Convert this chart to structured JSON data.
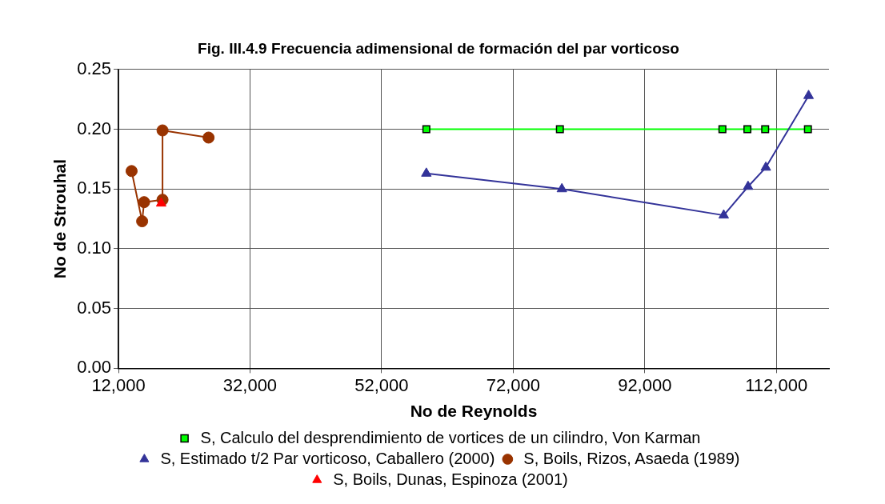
{
  "chart_data": {
    "type": "line",
    "title": "Fig. III.4.9 Frecuencia adimensional de formación del par vorticoso",
    "xlabel": "No de Reynolds",
    "ylabel": "No de Strouhal",
    "xlim": [
      12000,
      120000
    ],
    "xticks": [
      {
        "value": 12000,
        "label": "12,000"
      },
      {
        "value": 32000,
        "label": "32,000"
      },
      {
        "value": 52000,
        "label": "52,000"
      },
      {
        "value": 72000,
        "label": "72,000"
      },
      {
        "value": 92000,
        "label": "92,000"
      },
      {
        "value": 112000,
        "label": "112,000"
      }
    ],
    "ylim": [
      0,
      0.25
    ],
    "yticks": [
      {
        "value": 0,
        "label": "0.00"
      },
      {
        "value": 0.05,
        "label": "0.05"
      },
      {
        "value": 0.1,
        "label": "0.10"
      },
      {
        "value": 0.15,
        "label": "0.15"
      },
      {
        "value": 0.2,
        "label": "0.20"
      },
      {
        "value": 0.25,
        "label": "0.25"
      }
    ],
    "grid": true,
    "legend": "bottom",
    "line_style": "solid",
    "series": [
      {
        "name": "S, Calculo del desprendimiento de vortices de un cilindro, Von Karman",
        "color": "#00ff00",
        "marker": "square",
        "x": [
          58800,
          79100,
          103800,
          107600,
          110300,
          116800
        ],
        "values": [
          0.2,
          0.2,
          0.2,
          0.2,
          0.2,
          0.2
        ]
      },
      {
        "name": "S, Estimado t/2 Par vorticoso, Caballero (2000)",
        "color": "#333399",
        "marker": "triangle",
        "x": [
          58800,
          79400,
          104000,
          107700,
          110400,
          116900
        ],
        "values": [
          0.163,
          0.15,
          0.128,
          0.152,
          0.168,
          0.228
        ]
      },
      {
        "name": "S, Boils, Rizos, Asaeda (1989)",
        "color": "#993300",
        "marker": "circle",
        "x": [
          14000,
          15600,
          15900,
          18700,
          18700,
          25700
        ],
        "values": [
          0.165,
          0.123,
          0.139,
          0.141,
          0.199,
          0.193
        ]
      },
      {
        "name": "S, Boils, Dunas, Espinoza (2001)",
        "color": "#ff0000",
        "marker": "triangle",
        "x": [
          18500
        ],
        "values": [
          0.138
        ]
      }
    ]
  }
}
